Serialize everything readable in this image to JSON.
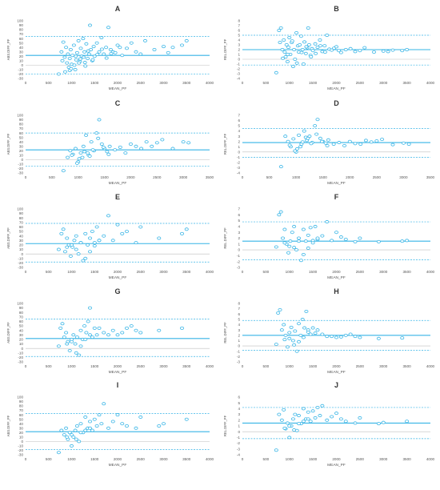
{
  "chart_data": [
    {
      "type": "scatter",
      "panel": "A",
      "title": "A",
      "xlabel": "MEAN_PF",
      "ylabel": "ABS.DIFF_PF",
      "xlim": [
        0,
        4000
      ],
      "xticks": [
        0,
        500,
        1000,
        1500,
        2000,
        2500,
        3000,
        3500,
        4000
      ],
      "ylim": [
        -30,
        100
      ],
      "yticks": [
        -30,
        -20,
        -10,
        0,
        10,
        20,
        30,
        40,
        50,
        60,
        70,
        80,
        90,
        100
      ],
      "mean_line": 22,
      "upper_loa": 65,
      "lower_loa": -20,
      "grid": false,
      "series_color": "#36b4e6",
      "x": [
        720,
        780,
        800,
        820,
        850,
        880,
        900,
        920,
        940,
        960,
        980,
        1000,
        1020,
        1050,
        1080,
        1100,
        1120,
        1150,
        1180,
        1200,
        1220,
        1250,
        1280,
        1300,
        1320,
        1350,
        1380,
        1400,
        1420,
        1450,
        1480,
        1500,
        1550,
        1600,
        1650,
        1700,
        1750,
        1800,
        1850,
        1900,
        1950,
        2000,
        2050,
        2100,
        2200,
        2300,
        2400,
        2500,
        2600,
        2800,
        3000,
        3100,
        3200,
        3400,
        3500,
        860,
        960,
        1060,
        1160,
        1260,
        1360,
        1460,
        1560,
        1660,
        1760,
        1860,
        990,
        1090,
        1190,
        1290
      ],
      "y": [
        -20,
        30,
        10,
        52,
        18,
        40,
        5,
        25,
        -5,
        15,
        35,
        2,
        22,
        45,
        -10,
        12,
        28,
        55,
        8,
        38,
        20,
        60,
        30,
        -2,
        48,
        15,
        25,
        90,
        35,
        10,
        42,
        20,
        50,
        30,
        62,
        25,
        40,
        85,
        35,
        30,
        28,
        45,
        40,
        22,
        38,
        50,
        30,
        25,
        55,
        35,
        42,
        28,
        40,
        45,
        55,
        -15,
        -12,
        0,
        5,
        18,
        32,
        12,
        24,
        36,
        16,
        26,
        -8,
        20,
        14,
        6
      ]
    },
    {
      "type": "scatter",
      "panel": "B",
      "title": "B",
      "xlabel": "MEAN_PF",
      "ylabel": "REL.DIFF_PF",
      "xlim": [
        0,
        4000
      ],
      "xticks": [
        0,
        500,
        1000,
        1500,
        2000,
        2500,
        3000,
        3500,
        4000
      ],
      "ylim": [
        -4,
        8
      ],
      "yticks": [
        -4,
        -3,
        -2,
        -1,
        0,
        1,
        2,
        3,
        4,
        5,
        6,
        7,
        8
      ],
      "mean_line": 2,
      "upper_loa": 5,
      "lower_loa": -1.2,
      "grid": false,
      "series_color": "#36b4e6",
      "x": [
        720,
        780,
        800,
        820,
        850,
        880,
        900,
        920,
        940,
        960,
        980,
        1000,
        1020,
        1050,
        1080,
        1100,
        1120,
        1150,
        1180,
        1200,
        1220,
        1250,
        1280,
        1300,
        1320,
        1350,
        1380,
        1400,
        1420,
        1450,
        1480,
        1500,
        1550,
        1600,
        1650,
        1700,
        1750,
        1800,
        1850,
        1900,
        1950,
        2000,
        2050,
        2100,
        2200,
        2300,
        2400,
        2500,
        2600,
        2800,
        3000,
        3100,
        3200,
        3400,
        3500,
        860,
        960,
        1060,
        1160,
        1260,
        1360,
        1460,
        1560,
        1660,
        1760
      ],
      "y": [
        -2.8,
        6,
        3.5,
        6.5,
        2,
        4,
        1.5,
        0.5,
        3,
        -0.5,
        2.5,
        4.5,
        1,
        3.5,
        -1.5,
        2,
        0,
        5.5,
        2.8,
        1.5,
        3,
        4.8,
        2,
        -1,
        3.6,
        1.2,
        2.4,
        6.5,
        3,
        0.8,
        2.2,
        1.8,
        3.2,
        2.5,
        4,
        1.6,
        2.8,
        5,
        2.1,
        1.9,
        2.3,
        2.6,
        1.8,
        1.4,
        2,
        2.2,
        1.6,
        1.8,
        2.4,
        1.5,
        1.7,
        1.6,
        1.9,
        1.8,
        2,
        0.2,
        1,
        3.8,
        -0.8,
        1.4,
        2.6,
        0.5,
        1.2,
        2.8,
        1.5
      ]
    },
    {
      "type": "scatter",
      "panel": "C",
      "title": "C",
      "xlabel": "MEAN_PF",
      "ylabel": "ABS.DIFF_PF",
      "xlim": [
        0,
        3500
      ],
      "xticks": [
        0,
        500,
        1000,
        1500,
        2000,
        2500,
        3000,
        3500
      ],
      "ylim": [
        -30,
        100
      ],
      "yticks": [
        -30,
        -20,
        -10,
        0,
        10,
        20,
        30,
        40,
        50,
        60,
        70,
        80,
        90,
        100
      ],
      "mean_line": 22,
      "upper_loa": 60,
      "lower_loa": -15,
      "grid": false,
      "series_color": "#36b4e6",
      "x": [
        720,
        800,
        850,
        900,
        950,
        1000,
        1050,
        1100,
        1150,
        1200,
        1250,
        1300,
        1350,
        1400,
        1450,
        1500,
        1550,
        1600,
        1700,
        1800,
        1900,
        2000,
        2100,
        2200,
        2300,
        2400,
        2500,
        2600,
        2800,
        3000,
        3100,
        880,
        980,
        1080,
        1180,
        1280,
        1380,
        1480,
        1580,
        1020,
        1120,
        1220
      ],
      "y": [
        -25,
        5,
        20,
        12,
        25,
        -5,
        15,
        30,
        55,
        10,
        40,
        20,
        60,
        90,
        35,
        25,
        18,
        30,
        22,
        28,
        15,
        35,
        30,
        25,
        40,
        30,
        38,
        45,
        25,
        40,
        38,
        10,
        -8,
        5,
        15,
        22,
        48,
        28,
        12,
        2,
        18,
        8
      ]
    },
    {
      "type": "scatter",
      "panel": "D",
      "title": "D",
      "xlabel": "MEAN_PF",
      "ylabel": "REL.DIFF_PF",
      "xlim": [
        0,
        3500
      ],
      "xticks": [
        0,
        500,
        1000,
        1500,
        2000,
        2500,
        3000,
        3500
      ],
      "ylim": [
        -4,
        7
      ],
      "yticks": [
        -4,
        -3,
        -2,
        -1,
        0,
        1,
        2,
        3,
        4,
        5,
        6,
        7
      ],
      "mean_line": 1.8,
      "upper_loa": 4.5,
      "lower_loa": -1,
      "grid": false,
      "series_color": "#36b4e6",
      "x": [
        720,
        800,
        850,
        900,
        950,
        1000,
        1050,
        1100,
        1150,
        1200,
        1250,
        1300,
        1350,
        1400,
        1450,
        1500,
        1550,
        1600,
        1700,
        1800,
        1900,
        2000,
        2100,
        2200,
        2300,
        2400,
        2500,
        2600,
        2800,
        3000,
        3100,
        880,
        980,
        1080,
        1180,
        1280,
        1380,
        1480,
        1580,
        1020,
        1120,
        1220
      ],
      "y": [
        -2.8,
        3,
        2,
        1,
        2.5,
        0,
        3.2,
        1.5,
        4,
        2.2,
        3,
        1.8,
        5,
        6.2,
        2.6,
        2,
        1.7,
        2.3,
        1.5,
        1.8,
        1.2,
        2,
        1.6,
        1.5,
        2.2,
        1.9,
        2.1,
        2.4,
        1.4,
        1.7,
        1.5,
        1.3,
        0.2,
        1,
        2.8,
        1.6,
        3.4,
        2,
        1.2,
        0.6,
        1.9,
        2.6
      ]
    },
    {
      "type": "scatter",
      "panel": "E",
      "title": "E",
      "xlabel": "MEAN_PF",
      "ylabel": "ABS.DIFF_PF",
      "xlim": [
        0,
        4000
      ],
      "xticks": [
        0,
        500,
        1000,
        1500,
        2000,
        2500,
        3000,
        3500,
        4000
      ],
      "ylim": [
        -30,
        100
      ],
      "yticks": [
        -30,
        -20,
        -10,
        0,
        10,
        20,
        30,
        40,
        50,
        60,
        70,
        80,
        90,
        100
      ],
      "mean_line": 23,
      "upper_loa": 68,
      "lower_loa": -18,
      "grid": false,
      "series_color": "#36b4e6",
      "x": [
        720,
        780,
        820,
        860,
        900,
        940,
        980,
        1020,
        1060,
        1100,
        1150,
        1200,
        1250,
        1300,
        1350,
        1400,
        1450,
        1500,
        1550,
        1600,
        1700,
        1800,
        1900,
        2000,
        2100,
        2200,
        2400,
        2500,
        2900,
        3400,
        3500,
        900,
        1000,
        1100,
        1200,
        1300,
        1400,
        1500,
        1600
      ],
      "y": [
        10,
        45,
        55,
        5,
        35,
        20,
        -5,
        15,
        30,
        40,
        0,
        25,
        -15,
        45,
        20,
        35,
        50,
        25,
        60,
        30,
        40,
        85,
        30,
        65,
        45,
        50,
        25,
        60,
        35,
        45,
        55,
        15,
        20,
        10,
        25,
        -10,
        5,
        18,
        30
      ]
    },
    {
      "type": "scatter",
      "panel": "F",
      "title": "F",
      "xlabel": "MEAN_PF",
      "ylabel": "REL.DIFF_PF",
      "xlim": [
        0,
        4000
      ],
      "xticks": [
        0,
        500,
        1000,
        1500,
        2000,
        2500,
        3000,
        3500,
        4000
      ],
      "ylim": [
        -3,
        7
      ],
      "yticks": [
        -3,
        -2,
        -1,
        0,
        1,
        2,
        3,
        4,
        5,
        6,
        7
      ],
      "mean_line": 1.5,
      "upper_loa": 4.8,
      "lower_loa": -1.7,
      "grid": false,
      "series_color": "#36b4e6",
      "x": [
        720,
        780,
        820,
        860,
        900,
        940,
        980,
        1020,
        1060,
        1100,
        1150,
        1200,
        1250,
        1300,
        1350,
        1400,
        1450,
        1500,
        1550,
        1600,
        1700,
        1800,
        1900,
        2000,
        2100,
        2200,
        2400,
        2500,
        2900,
        3400,
        3500,
        900,
        1000,
        1100,
        1200,
        1300,
        1400,
        1500,
        1600
      ],
      "y": [
        0.5,
        6,
        6.5,
        2,
        3.5,
        1,
        -0.5,
        1.5,
        3,
        4,
        0,
        2,
        -1.8,
        3.5,
        1.5,
        2.5,
        3.8,
        1.6,
        4,
        1.8,
        2.4,
        4.8,
        1.6,
        3,
        2.2,
        1.8,
        1.4,
        2,
        1.4,
        1.5,
        1.6,
        1.2,
        0.6,
        0.4,
        1.5,
        -0.8,
        0.3,
        1.2,
        2
      ]
    },
    {
      "type": "scatter",
      "panel": "G",
      "title": "G",
      "xlabel": "MEAN_PF",
      "ylabel": "ABS.DIFF_PF",
      "xlim": [
        0,
        4000
      ],
      "xticks": [
        0,
        500,
        1000,
        1500,
        2000,
        2500,
        3000,
        3500,
        4000
      ],
      "ylim": [
        -30,
        100
      ],
      "yticks": [
        -30,
        -20,
        -10,
        0,
        10,
        20,
        30,
        40,
        50,
        60,
        70,
        80,
        90,
        100
      ],
      "mean_line": 22,
      "upper_loa": 65,
      "lower_loa": -18,
      "grid": false,
      "series_color": "#36b4e6",
      "x": [
        720,
        760,
        800,
        840,
        880,
        920,
        960,
        1000,
        1040,
        1080,
        1120,
        1160,
        1200,
        1240,
        1280,
        1320,
        1360,
        1400,
        1450,
        1500,
        1550,
        1600,
        1700,
        1800,
        1900,
        2000,
        2100,
        2200,
        2300,
        2400,
        2500,
        2900,
        3400,
        900,
        1000,
        1100,
        1200,
        1300,
        1400
      ],
      "y": [
        5,
        45,
        55,
        25,
        35,
        15,
        -5,
        20,
        30,
        10,
        25,
        -15,
        40,
        20,
        50,
        35,
        60,
        90,
        25,
        45,
        30,
        45,
        35,
        30,
        40,
        30,
        35,
        45,
        50,
        40,
        35,
        40,
        45,
        10,
        15,
        -10,
        5,
        20,
        30
      ]
    },
    {
      "type": "scatter",
      "panel": "H",
      "title": "H",
      "xlabel": "MEAN_PF",
      "ylabel": "REL.DIFF_PF",
      "xlim": [
        0,
        4000
      ],
      "xticks": [
        0,
        500,
        1000,
        1500,
        2000,
        2500,
        3000,
        3500,
        4000
      ],
      "ylim": [
        -3,
        8
      ],
      "yticks": [
        -3,
        -2,
        -1,
        0,
        1,
        2,
        3,
        4,
        5,
        6,
        7,
        8
      ],
      "mean_line": 2,
      "upper_loa": 4.8,
      "lower_loa": -0.8,
      "grid": false,
      "series_color": "#36b4e6",
      "x": [
        720,
        760,
        800,
        840,
        880,
        920,
        960,
        1000,
        1040,
        1080,
        1120,
        1160,
        1200,
        1240,
        1280,
        1320,
        1360,
        1400,
        1450,
        1500,
        1550,
        1600,
        1700,
        1800,
        1900,
        2000,
        2100,
        2200,
        2300,
        2400,
        2500,
        2900,
        3400,
        900,
        1000,
        1100,
        1200,
        1300,
        1400
      ],
      "y": [
        0.3,
        6.2,
        6.8,
        3,
        4,
        2,
        -0.2,
        2.5,
        3.5,
        1,
        2.8,
        -1,
        4.2,
        2,
        5,
        3.4,
        6.5,
        3,
        2.2,
        3.4,
        2.4,
        3,
        2.2,
        1.8,
        1.8,
        1.6,
        1.7,
        2,
        2.2,
        1.8,
        1.6,
        1.4,
        1.5,
        1.2,
        1.4,
        0.2,
        0.8,
        1.6,
        2.6
      ]
    },
    {
      "type": "scatter",
      "panel": "I",
      "title": "I",
      "xlabel": "MEAN_PF",
      "ylabel": "ABS.DIFF_PF",
      "xlim": [
        0,
        4000
      ],
      "xticks": [
        0,
        500,
        1000,
        1500,
        2000,
        2500,
        3000,
        3500,
        4000
      ],
      "ylim": [
        -30,
        100
      ],
      "yticks": [
        -30,
        -20,
        -10,
        0,
        10,
        20,
        30,
        40,
        50,
        60,
        70,
        80,
        90,
        100
      ],
      "mean_line": 22,
      "upper_loa": 63,
      "lower_loa": -18,
      "grid": false,
      "series_color": "#36b4e6",
      "x": [
        720,
        780,
        840,
        880,
        920,
        960,
        1000,
        1040,
        1080,
        1120,
        1160,
        1200,
        1250,
        1300,
        1350,
        1400,
        1450,
        1500,
        1550,
        1600,
        1650,
        1700,
        1800,
        1900,
        2000,
        2100,
        2200,
        2400,
        2500,
        2900,
        3000,
        3500,
        900,
        1000,
        1100,
        1200,
        1300,
        1400
      ],
      "y": [
        -25,
        25,
        15,
        30,
        5,
        20,
        -10,
        10,
        25,
        35,
        0,
        40,
        20,
        55,
        30,
        45,
        25,
        50,
        35,
        60,
        40,
        85,
        30,
        45,
        60,
        40,
        35,
        30,
        55,
        35,
        40,
        50,
        10,
        15,
        5,
        20,
        25,
        30
      ]
    },
    {
      "type": "scatter",
      "panel": "J",
      "title": "J",
      "xlabel": "MEAN_PF",
      "ylabel": "REL.DIFF_PF",
      "xlim": [
        0,
        4000
      ],
      "xticks": [
        0,
        500,
        1000,
        1500,
        2000,
        2500,
        3000,
        3500,
        4000
      ],
      "ylim": [
        -4,
        6
      ],
      "yticks": [
        -4,
        -3,
        -2,
        -1,
        0,
        1,
        2,
        3,
        4,
        5,
        6
      ],
      "mean_line": 1.5,
      "upper_loa": 4.2,
      "lower_loa": -1.2,
      "grid": false,
      "series_color": "#36b4e6",
      "x": [
        720,
        780,
        840,
        880,
        920,
        960,
        1000,
        1040,
        1080,
        1120,
        1160,
        1200,
        1250,
        1300,
        1350,
        1400,
        1450,
        1500,
        1550,
        1600,
        1650,
        1700,
        1800,
        1900,
        2000,
        2100,
        2200,
        2400,
        2500,
        2900,
        3000,
        3500,
        900,
        1000,
        1100,
        1200,
        1300,
        1400
      ],
      "y": [
        -3.2,
        3,
        2,
        3.8,
        0.5,
        1.5,
        -1,
        1,
        2.2,
        3,
        0.2,
        2.8,
        1.4,
        4,
        2.2,
        3.4,
        1.8,
        3.6,
        2.4,
        4.2,
        2.8,
        4.5,
        2,
        2.6,
        3.2,
        2.2,
        1.8,
        1.5,
        2.4,
        1.4,
        1.6,
        1.8,
        0.6,
        1,
        0.3,
        1.4,
        1.8,
        2.2
      ]
    }
  ]
}
